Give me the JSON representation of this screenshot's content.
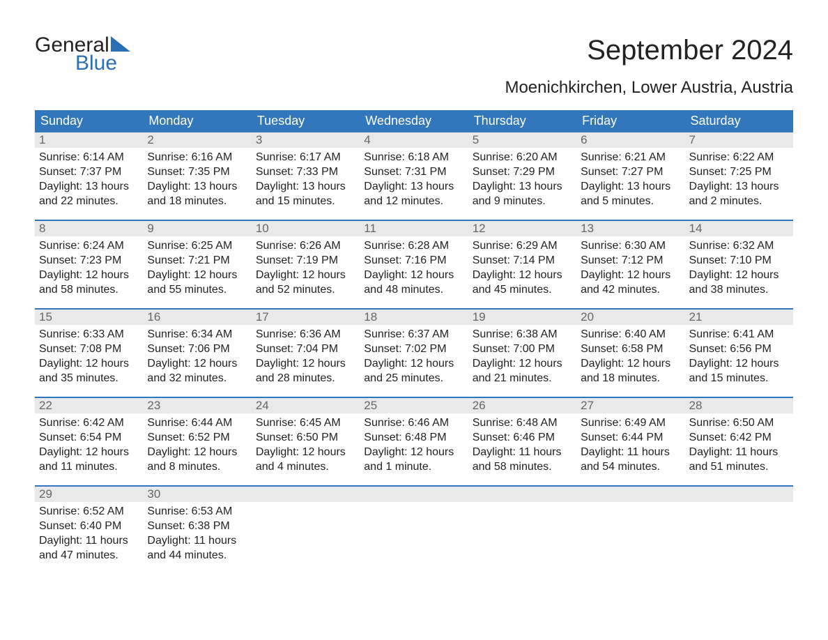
{
  "logo": {
    "line1": "General",
    "line2": "Blue"
  },
  "title": "September 2024",
  "subtitle": "Moenichkirchen, Lower Austria, Austria",
  "header_bg": "#3277bb",
  "header_text_color": "#ffffff",
  "daynum_bg": "#e9e9e9",
  "daynum_border": "#3277bb",
  "body_bg": "#ffffff",
  "text_color": "#222222",
  "logo_blue": "#2a6fb5",
  "font_family": "Arial",
  "title_fontsize_pt": 30,
  "subtitle_fontsize_pt": 18,
  "header_fontsize_pt": 14,
  "body_fontsize_pt": 12,
  "weekdays": [
    "Sunday",
    "Monday",
    "Tuesday",
    "Wednesday",
    "Thursday",
    "Friday",
    "Saturday"
  ],
  "days": [
    {
      "num": "1",
      "sunrise": "6:14 AM",
      "sunset": "7:37 PM",
      "daylight": "13 hours and 22 minutes."
    },
    {
      "num": "2",
      "sunrise": "6:16 AM",
      "sunset": "7:35 PM",
      "daylight": "13 hours and 18 minutes."
    },
    {
      "num": "3",
      "sunrise": "6:17 AM",
      "sunset": "7:33 PM",
      "daylight": "13 hours and 15 minutes."
    },
    {
      "num": "4",
      "sunrise": "6:18 AM",
      "sunset": "7:31 PM",
      "daylight": "13 hours and 12 minutes."
    },
    {
      "num": "5",
      "sunrise": "6:20 AM",
      "sunset": "7:29 PM",
      "daylight": "13 hours and 9 minutes."
    },
    {
      "num": "6",
      "sunrise": "6:21 AM",
      "sunset": "7:27 PM",
      "daylight": "13 hours and 5 minutes."
    },
    {
      "num": "7",
      "sunrise": "6:22 AM",
      "sunset": "7:25 PM",
      "daylight": "13 hours and 2 minutes."
    },
    {
      "num": "8",
      "sunrise": "6:24 AM",
      "sunset": "7:23 PM",
      "daylight": "12 hours and 58 minutes."
    },
    {
      "num": "9",
      "sunrise": "6:25 AM",
      "sunset": "7:21 PM",
      "daylight": "12 hours and 55 minutes."
    },
    {
      "num": "10",
      "sunrise": "6:26 AM",
      "sunset": "7:19 PM",
      "daylight": "12 hours and 52 minutes."
    },
    {
      "num": "11",
      "sunrise": "6:28 AM",
      "sunset": "7:16 PM",
      "daylight": "12 hours and 48 minutes."
    },
    {
      "num": "12",
      "sunrise": "6:29 AM",
      "sunset": "7:14 PM",
      "daylight": "12 hours and 45 minutes."
    },
    {
      "num": "13",
      "sunrise": "6:30 AM",
      "sunset": "7:12 PM",
      "daylight": "12 hours and 42 minutes."
    },
    {
      "num": "14",
      "sunrise": "6:32 AM",
      "sunset": "7:10 PM",
      "daylight": "12 hours and 38 minutes."
    },
    {
      "num": "15",
      "sunrise": "6:33 AM",
      "sunset": "7:08 PM",
      "daylight": "12 hours and 35 minutes."
    },
    {
      "num": "16",
      "sunrise": "6:34 AM",
      "sunset": "7:06 PM",
      "daylight": "12 hours and 32 minutes."
    },
    {
      "num": "17",
      "sunrise": "6:36 AM",
      "sunset": "7:04 PM",
      "daylight": "12 hours and 28 minutes."
    },
    {
      "num": "18",
      "sunrise": "6:37 AM",
      "sunset": "7:02 PM",
      "daylight": "12 hours and 25 minutes."
    },
    {
      "num": "19",
      "sunrise": "6:38 AM",
      "sunset": "7:00 PM",
      "daylight": "12 hours and 21 minutes."
    },
    {
      "num": "20",
      "sunrise": "6:40 AM",
      "sunset": "6:58 PM",
      "daylight": "12 hours and 18 minutes."
    },
    {
      "num": "21",
      "sunrise": "6:41 AM",
      "sunset": "6:56 PM",
      "daylight": "12 hours and 15 minutes."
    },
    {
      "num": "22",
      "sunrise": "6:42 AM",
      "sunset": "6:54 PM",
      "daylight": "12 hours and 11 minutes."
    },
    {
      "num": "23",
      "sunrise": "6:44 AM",
      "sunset": "6:52 PM",
      "daylight": "12 hours and 8 minutes."
    },
    {
      "num": "24",
      "sunrise": "6:45 AM",
      "sunset": "6:50 PM",
      "daylight": "12 hours and 4 minutes."
    },
    {
      "num": "25",
      "sunrise": "6:46 AM",
      "sunset": "6:48 PM",
      "daylight": "12 hours and 1 minute."
    },
    {
      "num": "26",
      "sunrise": "6:48 AM",
      "sunset": "6:46 PM",
      "daylight": "11 hours and 58 minutes."
    },
    {
      "num": "27",
      "sunrise": "6:49 AM",
      "sunset": "6:44 PM",
      "daylight": "11 hours and 54 minutes."
    },
    {
      "num": "28",
      "sunrise": "6:50 AM",
      "sunset": "6:42 PM",
      "daylight": "11 hours and 51 minutes."
    },
    {
      "num": "29",
      "sunrise": "6:52 AM",
      "sunset": "6:40 PM",
      "daylight": "11 hours and 47 minutes."
    },
    {
      "num": "30",
      "sunrise": "6:53 AM",
      "sunset": "6:38 PM",
      "daylight": "11 hours and 44 minutes."
    }
  ],
  "labels": {
    "sunrise": "Sunrise: ",
    "sunset": "Sunset: ",
    "daylight": "Daylight: "
  },
  "grid": {
    "rows": 5,
    "cols": 7,
    "start_weekday_index": 0,
    "total_days": 30
  }
}
